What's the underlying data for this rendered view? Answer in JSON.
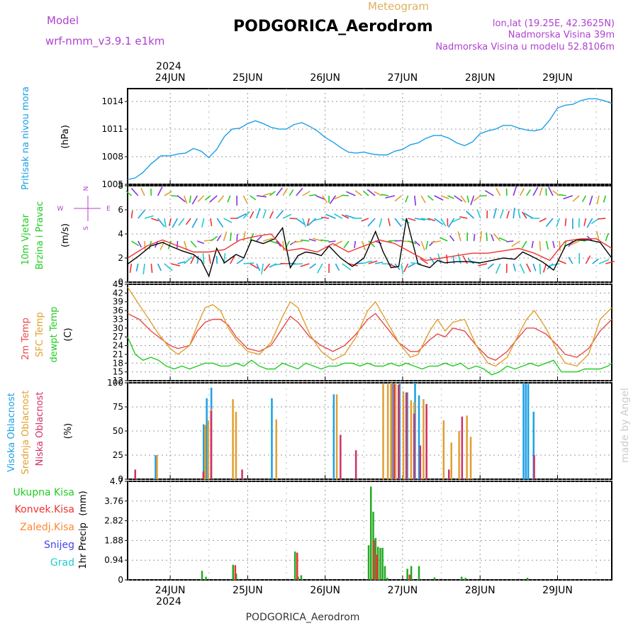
{
  "header": {
    "model_label": "Model",
    "model_name": "wrf-nmm_v3.9.1 e1km",
    "title": "PODGORICA_Aerodrom",
    "meteogram_label": "Meteogram",
    "lonlat": "lon,lat (19.25E, 42.3625N)",
    "elevation": "Nadmorska Visina 39m",
    "model_elevation": "Nadmorska Visina u modelu 52.8106m",
    "footer_title": "PODGORICA_Aerodrom",
    "watermark": "made by Angel"
  },
  "colors": {
    "pressure": "#1aa0e6",
    "wind_label": "#22cc22",
    "wind_speed": "#000000",
    "wind_gust": "#ee3333",
    "temp_2m": "#e84a4a",
    "temp_sfc": "#e0a030",
    "temp_dew": "#22cc22",
    "cloud_high": "#1aa0e6",
    "cloud_mid": "#e0a030",
    "cloud_low": "#d0306a",
    "precip_total": "#22aa22",
    "precip_conv": "#ee3333",
    "precip_frozen": "#ff8833",
    "precip_snow": "#4444ee",
    "precip_hail": "#22cccc",
    "purple_text": "#b040d0"
  },
  "time_axis": {
    "year": "2024",
    "day_labels": [
      "24JUN",
      "25JUN",
      "26JUN",
      "27JUN",
      "28JUN",
      "29JUN"
    ],
    "range_days": [
      -0.55,
      5.7
    ]
  },
  "chart_data": [
    {
      "type": "line",
      "panel": "pressure",
      "ylabel": "Pritisak na nivou mora",
      "unit": "(hPa)",
      "ylim": [
        1005,
        1015.4
      ],
      "yticks": [
        1005,
        1008,
        1011,
        1014
      ],
      "grid": true,
      "series": [
        {
          "x": [
            -0.55,
            -0.45,
            -0.35,
            -0.25,
            -0.12,
            0.0,
            0.1,
            0.2,
            0.3,
            0.4,
            0.5,
            0.6,
            0.7,
            0.8,
            0.9,
            1.0,
            1.1,
            1.2,
            1.3,
            1.4,
            1.5,
            1.6,
            1.7,
            1.8,
            1.9,
            2.0,
            2.1,
            2.2,
            2.3,
            2.4,
            2.5,
            2.6,
            2.7,
            2.8,
            2.9,
            3.0,
            3.1,
            3.2,
            3.3,
            3.4,
            3.5,
            3.6,
            3.7,
            3.8,
            3.9,
            4.0,
            4.1,
            4.2,
            4.3,
            4.4,
            4.5,
            4.6,
            4.7,
            4.8,
            4.9,
            5.0,
            5.1,
            5.2,
            5.3,
            5.4,
            5.5,
            5.6,
            5.7
          ],
          "values": [
            1005.5,
            1005.7,
            1006.3,
            1007.2,
            1008.1,
            1008.1,
            1008.3,
            1008.4,
            1008.9,
            1008.6,
            1007.9,
            1008.8,
            1010.2,
            1011.0,
            1011.1,
            1011.6,
            1011.9,
            1011.6,
            1011.2,
            1011.0,
            1011.0,
            1011.5,
            1011.7,
            1011.3,
            1010.8,
            1010.1,
            1009.6,
            1009.0,
            1008.5,
            1008.4,
            1008.5,
            1008.3,
            1008.2,
            1008.2,
            1008.6,
            1008.8,
            1009.3,
            1009.5,
            1010.0,
            1010.3,
            1010.3,
            1010.0,
            1009.5,
            1009.2,
            1009.6,
            1010.5,
            1010.8,
            1011.0,
            1011.4,
            1011.4,
            1011.1,
            1010.9,
            1010.8,
            1011.0,
            1012.0,
            1013.3,
            1013.6,
            1013.7,
            1014.1,
            1014.3,
            1014.3,
            1014.1,
            1013.8
          ]
        }
      ]
    },
    {
      "type": "line",
      "panel": "wind",
      "ylabel": "10m Vjetar",
      "ylabel2": "Brzina i Pravac",
      "unit": "(m/s)",
      "compass": [
        "N",
        "W",
        "E",
        "S"
      ],
      "ylim": [
        0,
        8
      ],
      "yticks": [
        0,
        2,
        4,
        6,
        8
      ],
      "grid": true,
      "series": [
        {
          "name": "speed",
          "x": [
            -0.55,
            -0.4,
            -0.25,
            -0.1,
            0.0,
            0.15,
            0.3,
            0.4,
            0.5,
            0.6,
            0.7,
            0.85,
            0.95,
            1.05,
            1.2,
            1.35,
            1.45,
            1.55,
            1.65,
            1.75,
            1.85,
            1.95,
            2.05,
            2.2,
            2.35,
            2.5,
            2.65,
            2.75,
            2.85,
            2.95,
            3.05,
            3.2,
            3.35,
            3.45,
            3.55,
            3.7,
            3.85,
            4.0,
            4.15,
            4.3,
            4.45,
            4.55,
            4.65,
            4.8,
            4.95,
            5.1,
            5.25,
            5.4,
            5.55,
            5.7
          ],
          "values": [
            1.5,
            2.2,
            3.0,
            3.3,
            3.0,
            2.6,
            2.3,
            1.8,
            0.5,
            2.8,
            1.6,
            2.3,
            2.0,
            3.5,
            3.2,
            3.6,
            4.5,
            1.2,
            2.2,
            2.5,
            2.4,
            2.2,
            3.0,
            2.0,
            1.3,
            2.0,
            4.2,
            2.5,
            1.2,
            1.3,
            5.3,
            1.5,
            1.2,
            1.8,
            1.6,
            1.7,
            1.7,
            1.6,
            1.8,
            2.0,
            1.9,
            2.5,
            2.2,
            1.7,
            1.0,
            3.0,
            3.5,
            3.5,
            3.3,
            2.0
          ]
        },
        {
          "name": "gust",
          "x": [
            -0.55,
            -0.3,
            -0.1,
            0.1,
            0.3,
            0.5,
            0.7,
            0.9,
            1.1,
            1.3,
            1.5,
            1.7,
            1.9,
            2.1,
            2.3,
            2.5,
            2.7,
            2.9,
            3.1,
            3.3,
            3.5,
            3.7,
            3.9,
            4.1,
            4.3,
            4.5,
            4.7,
            4.9,
            5.1,
            5.3,
            5.5,
            5.7
          ],
          "values": [
            2.0,
            3.0,
            3.5,
            3.0,
            2.5,
            2.5,
            2.7,
            3.5,
            3.8,
            4.0,
            2.6,
            2.8,
            2.5,
            3.2,
            2.5,
            3.0,
            3.5,
            3.2,
            2.5,
            1.8,
            2.0,
            2.2,
            2.4,
            2.4,
            2.6,
            2.8,
            2.4,
            1.8,
            3.4,
            3.6,
            3.6,
            2.8
          ]
        }
      ]
    },
    {
      "type": "line",
      "panel": "temperature",
      "ylabel": "2m Temp",
      "ylabel2": "SFC Temp",
      "ylabel3": "dewpt Temp",
      "unit": "(C)",
      "ylim": [
        12,
        45
      ],
      "yticks": [
        12,
        15,
        18,
        21,
        24,
        27,
        30,
        33,
        36,
        39,
        42,
        45
      ],
      "grid": true,
      "series": [
        {
          "name": "2m Temp",
          "x": [
            -0.55,
            -0.4,
            -0.25,
            -0.1,
            0.0,
            0.1,
            0.25,
            0.35,
            0.45,
            0.55,
            0.65,
            0.75,
            0.85,
            1.0,
            1.15,
            1.3,
            1.45,
            1.55,
            1.65,
            1.8,
            1.95,
            2.1,
            2.25,
            2.4,
            2.55,
            2.65,
            2.8,
            2.95,
            3.1,
            3.2,
            3.35,
            3.45,
            3.55,
            3.65,
            3.8,
            3.95,
            4.1,
            4.2,
            4.35,
            4.5,
            4.6,
            4.7,
            4.85,
            5.0,
            5.1,
            5.25,
            5.4,
            5.55,
            5.7
          ],
          "values": [
            35,
            33,
            29,
            26,
            24,
            23,
            24,
            29,
            32,
            33,
            33,
            31,
            27,
            23,
            22,
            24,
            30,
            34,
            32,
            27,
            24,
            22,
            24,
            28,
            33,
            35,
            30,
            25,
            22,
            22,
            26,
            28,
            27,
            30,
            29,
            24,
            20,
            19,
            22,
            27,
            30,
            30,
            28,
            24,
            21,
            20,
            23,
            29,
            33
          ]
        },
        {
          "name": "SFC Temp",
          "x": [
            -0.55,
            -0.45,
            -0.3,
            -0.15,
            0.0,
            0.1,
            0.25,
            0.35,
            0.45,
            0.55,
            0.65,
            0.75,
            0.85,
            1.0,
            1.15,
            1.3,
            1.45,
            1.55,
            1.65,
            1.8,
            1.95,
            2.1,
            2.25,
            2.4,
            2.55,
            2.65,
            2.8,
            2.95,
            3.1,
            3.2,
            3.35,
            3.45,
            3.55,
            3.65,
            3.8,
            3.95,
            4.1,
            4.2,
            4.35,
            4.5,
            4.6,
            4.7,
            4.85,
            5.0,
            5.1,
            5.25,
            5.4,
            5.55,
            5.7
          ],
          "values": [
            44,
            40,
            34,
            28,
            23,
            21,
            24,
            31,
            37,
            38,
            36,
            30,
            26,
            22,
            21,
            25,
            34,
            39,
            37,
            28,
            22,
            19,
            21,
            27,
            36,
            39,
            32,
            25,
            20,
            21,
            29,
            33,
            29,
            32,
            33,
            24,
            18,
            17,
            20,
            28,
            33,
            36,
            30,
            22,
            18,
            17,
            21,
            33,
            37
          ]
        },
        {
          "name": "dewpt Temp",
          "x": [
            -0.55,
            -0.45,
            -0.35,
            -0.25,
            -0.15,
            -0.05,
            0.05,
            0.15,
            0.25,
            0.35,
            0.45,
            0.55,
            0.65,
            0.75,
            0.85,
            0.95,
            1.05,
            1.15,
            1.25,
            1.35,
            1.45,
            1.55,
            1.65,
            1.75,
            1.85,
            1.95,
            2.05,
            2.15,
            2.25,
            2.35,
            2.45,
            2.55,
            2.65,
            2.75,
            2.85,
            2.95,
            3.05,
            3.15,
            3.25,
            3.35,
            3.45,
            3.55,
            3.65,
            3.75,
            3.85,
            3.95,
            4.05,
            4.15,
            4.25,
            4.35,
            4.45,
            4.55,
            4.65,
            4.75,
            4.85,
            4.95,
            5.05,
            5.15,
            5.25,
            5.35,
            5.45,
            5.55,
            5.65,
            5.7
          ],
          "values": [
            27,
            21,
            19,
            20,
            19,
            17,
            16,
            17,
            16,
            17,
            18,
            18,
            17,
            17,
            18,
            17,
            19,
            17,
            16,
            16,
            18,
            17,
            16,
            18,
            17,
            16,
            17,
            17,
            18,
            18,
            17,
            18,
            17,
            17,
            18,
            17,
            18,
            17,
            16,
            17,
            17,
            18,
            17,
            18,
            16,
            17,
            16,
            14,
            15,
            17,
            16,
            17,
            18,
            17,
            18,
            19,
            15,
            15,
            15,
            16,
            16,
            16,
            17,
            18
          ]
        }
      ]
    },
    {
      "type": "bar",
      "panel": "clouds",
      "ylabel": "Visoka Oblacnost",
      "ylabel2": "Srednja Oblacnost",
      "ylabel3": "Niska Oblacnost",
      "unit": "(%)",
      "ylim": [
        0,
        100
      ],
      "yticks": [
        0,
        25,
        50,
        75,
        100
      ],
      "grid": true,
      "series": [
        {
          "name": "Visoka Oblacnost",
          "x": [
            -0.2,
            0.42,
            0.46,
            0.52,
            1.3,
            2.1,
            2.85,
            2.95,
            3.05,
            3.15,
            3.2,
            4.55,
            4.58,
            4.61,
            4.68
          ],
          "values": [
            25,
            57,
            84,
            95,
            84,
            88,
            100,
            100,
            90,
            100,
            87,
            100,
            99,
            99,
            70
          ]
        },
        {
          "name": "Srednja Oblacnost",
          "x": [
            -0.2,
            0.42,
            0.46,
            0.5,
            0.78,
            0.82,
            1.34,
            2.12,
            2.72,
            2.78,
            2.82,
            2.88,
            2.92,
            2.98,
            3.02,
            3.08,
            3.12,
            3.24,
            3.28,
            3.5,
            3.6,
            3.7,
            3.8,
            3.85
          ],
          "values": [
            25,
            56,
            61,
            73,
            83,
            70,
            62,
            88,
            99,
            99,
            100,
            100,
            96,
            91,
            88,
            82,
            80,
            83,
            72,
            61,
            38,
            50,
            66,
            44
          ]
        },
        {
          "name": "Niska Oblacnost",
          "x": [
            -0.5,
            0.38,
            0.48,
            0.88,
            2.15,
            2.35,
            2.84,
            2.9,
            3.0,
            3.1,
            3.18,
            3.26,
            3.55,
            3.72,
            4.65
          ],
          "values": [
            10,
            8,
            71,
            10,
            46,
            30,
            99,
            98,
            90,
            68,
            35,
            78,
            10,
            65,
            25
          ]
        }
      ]
    },
    {
      "type": "bar",
      "panel": "precipitation",
      "ylabel": "1hr Precip",
      "unit": "(mm)",
      "legend": [
        "Ukupna Kisa",
        "Konvek.Kisa",
        "Zaledj.Kisa",
        "Snijeg",
        "Grad"
      ],
      "ylim": [
        0,
        4.7
      ],
      "yticks": [
        0,
        0.94,
        1.88,
        2.82,
        3.76,
        4.7
      ],
      "grid": true,
      "series": [
        {
          "name": "Ukupna Kisa",
          "x": [
            0.4,
            0.45,
            0.8,
            0.84,
            1.6,
            1.64,
            1.68,
            2.55,
            2.58,
            2.61,
            2.64,
            2.67,
            2.7,
            2.73,
            2.76,
            2.79,
            3.05,
            3.1,
            3.2,
            3.4,
            3.75,
            3.8,
            4.6
          ],
          "values": [
            0.43,
            0.15,
            0.72,
            0.3,
            1.35,
            0.15,
            0.22,
            1.65,
            4.45,
            3.25,
            2.0,
            1.58,
            1.53,
            1.53,
            0.66,
            0.1,
            0.53,
            0.66,
            0.66,
            0.12,
            0.15,
            0.1,
            0.1
          ]
        },
        {
          "name": "Konvek.Kisa",
          "x": [
            0.81,
            1.61,
            2.6,
            2.64,
            3.06
          ],
          "values": [
            0.7,
            1.3,
            1.9,
            1.2,
            0.25
          ]
        }
      ]
    }
  ]
}
